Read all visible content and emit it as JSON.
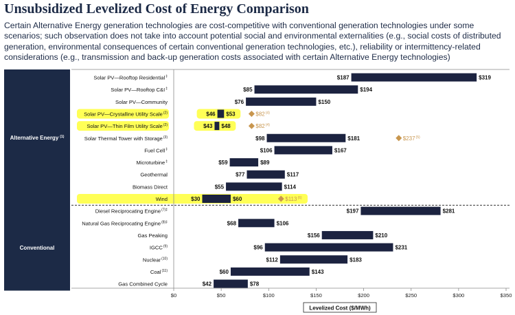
{
  "chart_data": {
    "type": "bar",
    "subtype": "floating-range",
    "title": "Unsubsidized Levelized Cost of Energy Comparison",
    "subtitle": "Certain Alternative Energy generation technologies are cost-competitive with conventional generation technologies under some scenarios; such observation does not take into account potential social and environmental externalities (e.g., social costs of distributed generation, environmental consequences of certain conventional generation technologies, etc.), reliability or intermittency-related considerations (e.g., transmission and back-up generation costs associated with certain Alternative Energy technologies)",
    "xlabel": "Levelized Cost ($/MWh)",
    "xlim": [
      0,
      350
    ],
    "ticks": [
      "$0",
      "$50",
      "$100",
      "$150",
      "$200",
      "$250",
      "$300",
      "$350"
    ],
    "tick_values": [
      0,
      50,
      100,
      150,
      200,
      250,
      300,
      350
    ],
    "groups": [
      {
        "name": "Alternative Energy",
        "note": "(1)"
      },
      {
        "name": "Conventional",
        "note": ""
      }
    ],
    "categories": [
      {
        "label": "Solar PV—Rooftop Residential",
        "note": "‡",
        "group": 0,
        "low": 187,
        "high": 319,
        "low_label": "$187",
        "high_label": "$319",
        "highlight": false
      },
      {
        "label": "Solar PV—Rooftop C&I",
        "note": "‡",
        "group": 0,
        "low": 85,
        "high": 194,
        "low_label": "$85",
        "high_label": "$194",
        "highlight": false
      },
      {
        "label": "Solar PV—Community",
        "note": "",
        "group": 0,
        "low": 76,
        "high": 150,
        "low_label": "$76",
        "high_label": "$150",
        "highlight": false
      },
      {
        "label": "Solar PV—Crystalline Utility Scale",
        "note": "(2)",
        "group": 0,
        "low": 46,
        "high": 53,
        "low_label": "$46",
        "high_label": "$53",
        "highlight": true,
        "outlier": 82,
        "outlier_label": "$82",
        "outlier_note": "(4)"
      },
      {
        "label": "Solar PV—Thin Film Utility Scale",
        "note": "(2)",
        "group": 0,
        "low": 43,
        "high": 48,
        "low_label": "$43",
        "high_label": "$48",
        "highlight": true,
        "outlier": 82,
        "outlier_label": "$82",
        "outlier_note": "(4)"
      },
      {
        "label": "Solar Thermal Tower with Storage",
        "note": "(3)",
        "group": 0,
        "low": 98,
        "high": 181,
        "low_label": "$98",
        "high_label": "$181",
        "highlight": false,
        "outlier": 237,
        "outlier_label": "$237",
        "outlier_note": "(5)"
      },
      {
        "label": "Fuel Cell",
        "note": "‡",
        "group": 0,
        "low": 106,
        "high": 167,
        "low_label": "$106",
        "high_label": "$167",
        "highlight": false
      },
      {
        "label": "Microturbine",
        "note": "‡",
        "group": 0,
        "low": 59,
        "high": 89,
        "low_label": "$59",
        "high_label": "$89",
        "highlight": false
      },
      {
        "label": "Geothermal",
        "note": "",
        "group": 0,
        "low": 77,
        "high": 117,
        "low_label": "$77",
        "high_label": "$117",
        "highlight": false
      },
      {
        "label": "Biomass Direct",
        "note": "",
        "group": 0,
        "low": 55,
        "high": 114,
        "low_label": "$55",
        "high_label": "$114",
        "highlight": false
      },
      {
        "label": "Wind",
        "note": "",
        "group": 0,
        "low": 30,
        "high": 60,
        "low_label": "$30",
        "high_label": "$60",
        "highlight": true,
        "outlier": 113,
        "outlier_label": "$113",
        "outlier_note": "(6)"
      },
      {
        "label": "Diesel Reciprocating Engine",
        "note": "(7)‡",
        "group": 1,
        "low": 197,
        "high": 281,
        "low_label": "$197",
        "high_label": "$281",
        "highlight": false
      },
      {
        "label": "Natural Gas Reciprocating Engine",
        "note": "(8)‡",
        "group": 1,
        "low": 68,
        "high": 106,
        "low_label": "$68",
        "high_label": "$106",
        "highlight": false
      },
      {
        "label": "Gas Peaking",
        "note": "",
        "group": 1,
        "low": 156,
        "high": 210,
        "low_label": "$156",
        "high_label": "$210",
        "highlight": false
      },
      {
        "label": "IGCC",
        "note": "(9)",
        "group": 1,
        "low": 96,
        "high": 231,
        "low_label": "$96",
        "high_label": "$231",
        "highlight": false
      },
      {
        "label": "Nuclear",
        "note": "(10)",
        "group": 1,
        "low": 112,
        "high": 183,
        "low_label": "$112",
        "high_label": "$183",
        "highlight": false
      },
      {
        "label": "Coal",
        "note": "(11)",
        "group": 1,
        "low": 60,
        "high": 143,
        "low_label": "$60",
        "high_label": "$143",
        "highlight": false
      },
      {
        "label": "Gas Combined Cycle",
        "note": "",
        "group": 1,
        "low": 42,
        "high": 78,
        "low_label": "$42",
        "high_label": "$78",
        "highlight": false
      }
    ],
    "colors": {
      "bar": "#1c2340",
      "highlight": "#ffff44",
      "outlier": "#c8964e",
      "panel": "#1c2a46"
    }
  }
}
